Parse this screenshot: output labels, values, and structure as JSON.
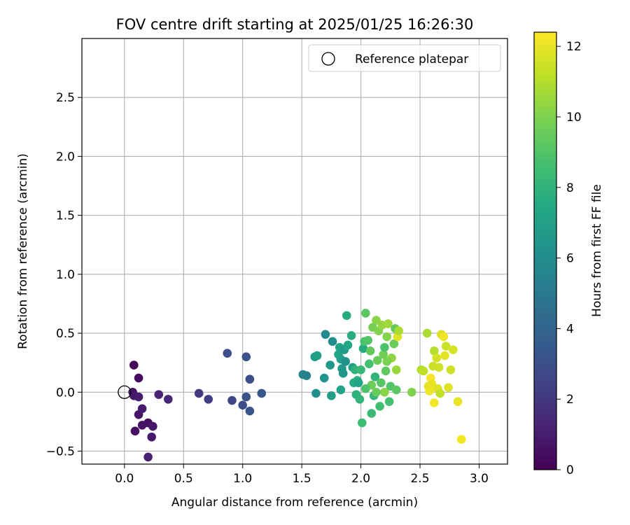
{
  "chart_data": {
    "type": "scatter",
    "title": "FOV centre drift starting at 2025/01/25 16:26:30",
    "xlabel": "Angular distance from reference (arcmin)",
    "ylabel": "Rotation from reference (arcmin)",
    "xlim": [
      -0.36,
      3.24
    ],
    "ylim": [
      -0.61,
      3.0
    ],
    "xticks": [
      0.0,
      0.5,
      1.0,
      1.5,
      2.0,
      2.5,
      3.0
    ],
    "xtick_labels": [
      "0.0",
      "0.5",
      "1.0",
      "1.5",
      "2.0",
      "2.5",
      "3.0"
    ],
    "yticks": [
      -0.5,
      0.0,
      0.5,
      1.0,
      1.5,
      2.0,
      2.5
    ],
    "ytick_labels": [
      "−0.5",
      "0.0",
      "0.5",
      "1.0",
      "1.5",
      "2.0",
      "2.5"
    ],
    "grid": true,
    "legend": {
      "position": "top-right",
      "entries": [
        "Reference platepar"
      ]
    },
    "colorbar": {
      "label": "Hours from first FF file",
      "colormap": "viridis",
      "range": [
        0,
        12.4
      ],
      "ticks": [
        0,
        2,
        4,
        6,
        8,
        10,
        12
      ],
      "tick_labels": [
        "0",
        "2",
        "4",
        "6",
        "8",
        "10",
        "12"
      ]
    },
    "reference_point": {
      "x": 0.0,
      "y": 0.0
    },
    "points": [
      {
        "x": 0.08,
        "y": 0.23,
        "c": 0.2
      },
      {
        "x": 0.12,
        "y": 0.12,
        "c": 0.4
      },
      {
        "x": 0.07,
        "y": 0.0,
        "c": 0.6
      },
      {
        "x": 0.08,
        "y": -0.03,
        "c": 0.8
      },
      {
        "x": 0.12,
        "y": -0.04,
        "c": 1.0
      },
      {
        "x": 0.15,
        "y": -0.14,
        "c": 0.9
      },
      {
        "x": 0.12,
        "y": -0.19,
        "c": 0.7
      },
      {
        "x": 0.2,
        "y": -0.26,
        "c": 0.5
      },
      {
        "x": 0.15,
        "y": -0.28,
        "c": 0.6
      },
      {
        "x": 0.24,
        "y": -0.29,
        "c": 0.8
      },
      {
        "x": 0.09,
        "y": -0.33,
        "c": 0.5
      },
      {
        "x": 0.23,
        "y": -0.38,
        "c": 0.9
      },
      {
        "x": 0.2,
        "y": -0.55,
        "c": 1.1
      },
      {
        "x": 0.29,
        "y": -0.02,
        "c": 1.2
      },
      {
        "x": 0.37,
        "y": -0.06,
        "c": 1.4
      },
      {
        "x": 0.63,
        "y": -0.01,
        "c": 2.1
      },
      {
        "x": 0.71,
        "y": -0.06,
        "c": 2.3
      },
      {
        "x": 0.87,
        "y": 0.33,
        "c": 3.0
      },
      {
        "x": 0.91,
        "y": -0.07,
        "c": 2.6
      },
      {
        "x": 1.0,
        "y": -0.11,
        "c": 2.9
      },
      {
        "x": 1.03,
        "y": 0.3,
        "c": 3.1
      },
      {
        "x": 1.03,
        "y": -0.04,
        "c": 3.2
      },
      {
        "x": 1.06,
        "y": 0.11,
        "c": 3.0
      },
      {
        "x": 1.06,
        "y": -0.16,
        "c": 3.3
      },
      {
        "x": 1.16,
        "y": -0.01,
        "c": 3.4
      },
      {
        "x": 1.51,
        "y": 0.15,
        "c": 5.6
      },
      {
        "x": 1.54,
        "y": 0.14,
        "c": 5.4
      },
      {
        "x": 1.61,
        "y": 0.3,
        "c": 6.8
      },
      {
        "x": 1.63,
        "y": 0.31,
        "c": 7.0
      },
      {
        "x": 1.62,
        "y": -0.01,
        "c": 6.2
      },
      {
        "x": 1.69,
        "y": 0.12,
        "c": 6.4
      },
      {
        "x": 1.7,
        "y": 0.49,
        "c": 5.8
      },
      {
        "x": 1.74,
        "y": 0.23,
        "c": 6.6
      },
      {
        "x": 1.75,
        "y": -0.03,
        "c": 6.9
      },
      {
        "x": 1.76,
        "y": 0.43,
        "c": 6.0
      },
      {
        "x": 1.81,
        "y": 0.32,
        "c": 7.2
      },
      {
        "x": 1.82,
        "y": 0.38,
        "c": 7.3
      },
      {
        "x": 1.83,
        "y": 0.28,
        "c": 7.0
      },
      {
        "x": 1.84,
        "y": 0.2,
        "c": 6.7
      },
      {
        "x": 1.85,
        "y": 0.16,
        "c": 6.5
      },
      {
        "x": 1.86,
        "y": 0.36,
        "c": 6.8
      },
      {
        "x": 1.87,
        "y": 0.26,
        "c": 6.2
      },
      {
        "x": 1.88,
        "y": 0.65,
        "c": 7.6
      },
      {
        "x": 1.89,
        "y": 0.4,
        "c": 7.4
      },
      {
        "x": 1.83,
        "y": 0.02,
        "c": 7.1
      },
      {
        "x": 1.92,
        "y": 0.48,
        "c": 7.7
      },
      {
        "x": 1.93,
        "y": 0.21,
        "c": 7.0
      },
      {
        "x": 1.94,
        "y": 0.08,
        "c": 7.5
      },
      {
        "x": 1.95,
        "y": 0.19,
        "c": 8.0
      },
      {
        "x": 1.96,
        "y": -0.02,
        "c": 7.9
      },
      {
        "x": 1.97,
        "y": 0.1,
        "c": 7.8
      },
      {
        "x": 1.98,
        "y": 0.08,
        "c": 7.2
      },
      {
        "x": 1.99,
        "y": -0.06,
        "c": 8.1
      },
      {
        "x": 2.0,
        "y": 0.19,
        "c": 8.3
      },
      {
        "x": 2.01,
        "y": -0.26,
        "c": 8.5
      },
      {
        "x": 2.02,
        "y": 0.37,
        "c": 7.6
      },
      {
        "x": 2.03,
        "y": 0.43,
        "c": 8.8
      },
      {
        "x": 2.04,
        "y": 0.67,
        "c": 9.2
      },
      {
        "x": 2.06,
        "y": 0.44,
        "c": 9.0
      },
      {
        "x": 2.07,
        "y": 0.24,
        "c": 8.7
      },
      {
        "x": 2.08,
        "y": 0.35,
        "c": 9.4
      },
      {
        "x": 2.09,
        "y": 0.06,
        "c": 9.6
      },
      {
        "x": 2.1,
        "y": 0.55,
        "c": 9.8
      },
      {
        "x": 2.09,
        "y": -0.18,
        "c": 8.4
      },
      {
        "x": 2.11,
        "y": -0.03,
        "c": 8.2
      },
      {
        "x": 2.12,
        "y": 0.13,
        "c": 8.0
      },
      {
        "x": 2.13,
        "y": 0.61,
        "c": 10.2
      },
      {
        "x": 2.14,
        "y": 0.27,
        "c": 9.5
      },
      {
        "x": 2.15,
        "y": 0.52,
        "c": 10.0
      },
      {
        "x": 2.16,
        "y": -0.12,
        "c": 8.6
      },
      {
        "x": 2.17,
        "y": 0.08,
        "c": 9.1
      },
      {
        "x": 2.18,
        "y": 0.57,
        "c": 10.4
      },
      {
        "x": 2.19,
        "y": 0.32,
        "c": 9.7
      },
      {
        "x": 2.2,
        "y": 0.38,
        "c": 8.9
      },
      {
        "x": 2.21,
        "y": 0.18,
        "c": 9.3
      },
      {
        "x": 2.22,
        "y": 0.47,
        "c": 10.1
      },
      {
        "x": 2.23,
        "y": 0.58,
        "c": 10.6
      },
      {
        "x": 2.24,
        "y": -0.08,
        "c": 8.7
      },
      {
        "x": 2.25,
        "y": 0.05,
        "c": 9.0
      },
      {
        "x": 2.26,
        "y": 0.29,
        "c": 10.3
      },
      {
        "x": 2.28,
        "y": 0.41,
        "c": 9.6
      },
      {
        "x": 2.29,
        "y": 0.54,
        "c": 9.4
      },
      {
        "x": 2.3,
        "y": 0.19,
        "c": 10.5
      },
      {
        "x": 2.3,
        "y": 0.02,
        "c": 9.2
      },
      {
        "x": 2.31,
        "y": 0.47,
        "c": 11.8
      },
      {
        "x": 2.32,
        "y": 0.52,
        "c": 10.8
      },
      {
        "x": 2.22,
        "y": 0.26,
        "c": 9.9
      },
      {
        "x": 2.2,
        "y": 0.0,
        "c": 10.2
      },
      {
        "x": 2.43,
        "y": 0.0,
        "c": 10.0
      },
      {
        "x": 2.13,
        "y": 0.0,
        "c": 9.5
      },
      {
        "x": 2.04,
        "y": 0.03,
        "c": 8.9
      },
      {
        "x": 2.51,
        "y": 0.19,
        "c": 11.0
      },
      {
        "x": 2.53,
        "y": 0.18,
        "c": 11.2
      },
      {
        "x": 2.56,
        "y": 0.5,
        "c": 10.8
      },
      {
        "x": 2.57,
        "y": 0.05,
        "c": 11.9
      },
      {
        "x": 2.58,
        "y": 0.01,
        "c": 12.1
      },
      {
        "x": 2.59,
        "y": 0.12,
        "c": 12.3
      },
      {
        "x": 2.6,
        "y": 0.07,
        "c": 12.0
      },
      {
        "x": 2.61,
        "y": 0.22,
        "c": 11.4
      },
      {
        "x": 2.62,
        "y": 0.35,
        "c": 11.0
      },
      {
        "x": 2.62,
        "y": -0.09,
        "c": 12.2
      },
      {
        "x": 2.64,
        "y": 0.29,
        "c": 11.6
      },
      {
        "x": 2.65,
        "y": 0.03,
        "c": 11.8
      },
      {
        "x": 2.66,
        "y": 0.21,
        "c": 11.5
      },
      {
        "x": 2.67,
        "y": -0.01,
        "c": 11.3
      },
      {
        "x": 2.68,
        "y": 0.49,
        "c": 11.7
      },
      {
        "x": 2.7,
        "y": 0.47,
        "c": 12.1
      },
      {
        "x": 2.71,
        "y": 0.31,
        "c": 11.9
      },
      {
        "x": 2.72,
        "y": 0.39,
        "c": 11.4
      },
      {
        "x": 2.74,
        "y": 0.04,
        "c": 11.8
      },
      {
        "x": 2.76,
        "y": 0.19,
        "c": 11.5
      },
      {
        "x": 2.78,
        "y": 0.36,
        "c": 11.6
      },
      {
        "x": 2.82,
        "y": -0.08,
        "c": 12.0
      },
      {
        "x": 2.85,
        "y": -0.4,
        "c": 12.2
      }
    ]
  }
}
